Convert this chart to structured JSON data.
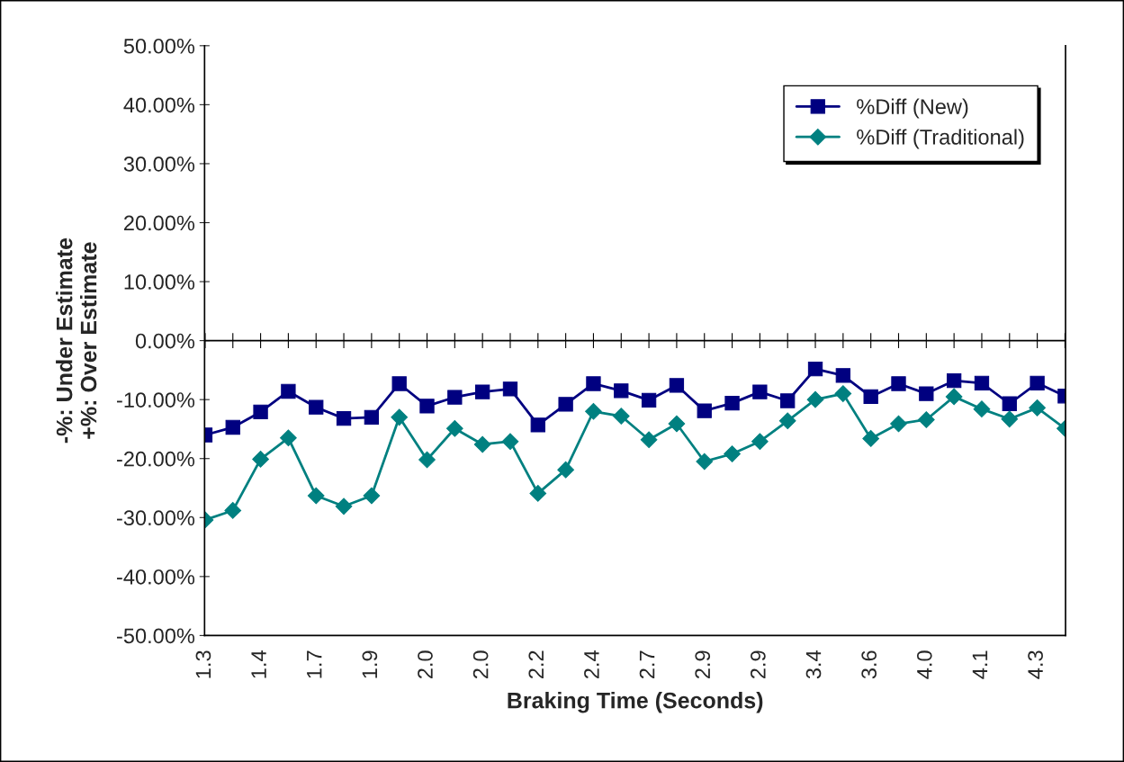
{
  "chart_data": {
    "type": "line",
    "xlabel": "Braking Time (Seconds)",
    "ylabel": "-%: Under Estimate\n+%: Over Estimate",
    "categories": [
      "1.3",
      null,
      "1.4",
      null,
      "1.7",
      null,
      "1.9",
      null,
      "2.0",
      null,
      "2.0",
      null,
      "2.2",
      null,
      "2.4",
      null,
      "2.7",
      null,
      "2.9",
      null,
      "2.9",
      null,
      "3.4",
      null,
      "3.6",
      null,
      "4.0",
      null,
      "4.1",
      null,
      "4.3",
      null
    ],
    "series": [
      {
        "name": "%Diff (New)",
        "color": "#000080",
        "marker": "square",
        "values": [
          -16.0,
          -14.7,
          -12.1,
          -8.6,
          -11.3,
          -13.2,
          -13.0,
          -7.3,
          -11.1,
          -9.6,
          -8.7,
          -8.2,
          -14.3,
          -10.8,
          -7.3,
          -8.5,
          -10.1,
          -7.6,
          -11.9,
          -10.6,
          -8.7,
          -10.2,
          -4.8,
          -5.9,
          -9.5,
          -7.3,
          -9.0,
          -6.8,
          -7.2,
          -10.7,
          -7.2,
          -9.4
        ]
      },
      {
        "name": "%Diff (Traditional)",
        "color": "#008080",
        "marker": "diamond",
        "values": [
          -30.4,
          -28.8,
          -20.1,
          -16.5,
          -26.3,
          -28.1,
          -26.3,
          -13.0,
          -20.2,
          -14.9,
          -17.6,
          -17.1,
          -25.9,
          -21.9,
          -12.0,
          -12.8,
          -16.8,
          -14.1,
          -20.5,
          -19.2,
          -17.1,
          -13.6,
          -10.0,
          -9.0,
          -16.6,
          -14.1,
          -13.4,
          -9.5,
          -11.6,
          -13.3,
          -11.4,
          -14.9
        ]
      }
    ],
    "ylim": [
      -50,
      50
    ],
    "yticks": [
      {
        "value": -50,
        "label": "-50.00%"
      },
      {
        "value": -40,
        "label": "-40.00%"
      },
      {
        "value": -30,
        "label": "-30.00%"
      },
      {
        "value": -20,
        "label": "-20.00%"
      },
      {
        "value": -10,
        "label": "-10.00%"
      },
      {
        "value": 0,
        "label": "0.00%"
      },
      {
        "value": 10,
        "label": "10.00%"
      },
      {
        "value": 20,
        "label": "20.00%"
      },
      {
        "value": 30,
        "label": "30.00%"
      },
      {
        "value": 40,
        "label": "40.00%"
      },
      {
        "value": 50,
        "label": "50.00%"
      }
    ],
    "ref_lines": [
      {
        "axis": "y",
        "value": 0,
        "color": "#000000"
      }
    ],
    "grid": false,
    "legend": "top right",
    "line_style": "solid"
  }
}
